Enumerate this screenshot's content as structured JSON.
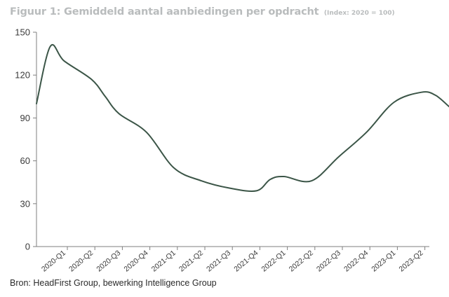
{
  "chart_data": {
    "type": "line",
    "title": "Figuur 1: Gemiddeld aantal aanbiedingen per opdracht",
    "subtitle": "(Index: 2020 = 100)",
    "xlabel": "",
    "ylabel": "",
    "categories": [
      "2020-Q1",
      "2020-Q2",
      "2020-Q3",
      "2020-Q4",
      "2021-Q1",
      "2021-Q2",
      "2021-Q3",
      "2021-Q4",
      "2022-Q1",
      "2022-Q2",
      "2022-Q3",
      "2022-Q4",
      "2023-Q1",
      "2023-Q2"
    ],
    "x": [
      0,
      0.5,
      1,
      2,
      2.5,
      3,
      4,
      5,
      6,
      7,
      8,
      8.5,
      9,
      10,
      11,
      12,
      13,
      14,
      14.5,
      15
    ],
    "y": [
      100,
      140,
      130,
      117,
      105,
      93,
      80,
      55,
      46,
      41,
      39,
      47,
      49,
      46,
      63,
      80,
      101,
      108,
      106,
      98
    ],
    "yticks": [
      0,
      30,
      60,
      90,
      120,
      150
    ],
    "ytick_labels": [
      "0",
      "30",
      "60",
      "90",
      "120",
      "150"
    ],
    "ylim": [
      0,
      150
    ],
    "grid": false,
    "legend": "none",
    "line_color": "#3b5547",
    "source": "Bron: HeadFirst Group, bewerking Intelligence Group"
  }
}
